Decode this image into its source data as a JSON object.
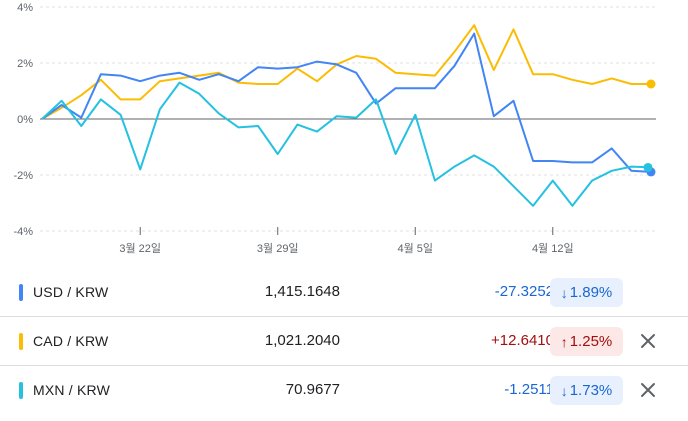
{
  "chart_data": {
    "type": "line",
    "ylim": [
      -4,
      4
    ],
    "ymin_tick": -4,
    "ymax_tick": 4,
    "y_ticks": [
      {
        "value": 4,
        "label": "4%"
      },
      {
        "value": 2,
        "label": "2%"
      },
      {
        "value": 0,
        "label": "0%"
      },
      {
        "value": -2,
        "label": "-2%"
      },
      {
        "value": -4,
        "label": "-4%"
      }
    ],
    "x_tick_labels": [
      {
        "index": 5,
        "label": "3월 22일"
      },
      {
        "index": 12,
        "label": "3월 29일"
      },
      {
        "index": 19,
        "label": "4월 5일"
      },
      {
        "index": 26,
        "label": "4월 12일"
      }
    ],
    "series": [
      {
        "name": "USD / KRW",
        "color": "#4285f4",
        "values": [
          0,
          0.5,
          0.05,
          1.6,
          1.55,
          1.35,
          1.55,
          1.65,
          1.4,
          1.6,
          1.35,
          1.85,
          1.8,
          1.85,
          2.05,
          1.95,
          1.65,
          0.55,
          1.1,
          1.1,
          1.1,
          1.9,
          3.05,
          0.1,
          0.65,
          -1.5,
          -1.5,
          -1.55,
          -1.55,
          -1.05,
          -1.85,
          -1.89
        ]
      },
      {
        "name": "CAD / KRW",
        "color": "#fbbc04",
        "values": [
          0,
          0.4,
          0.85,
          1.4,
          0.7,
          0.7,
          1.35,
          1.45,
          1.55,
          1.65,
          1.3,
          1.25,
          1.25,
          1.8,
          1.35,
          1.95,
          2.25,
          2.15,
          1.65,
          1.6,
          1.55,
          2.4,
          3.35,
          1.75,
          3.2,
          1.6,
          1.6,
          1.4,
          1.25,
          1.45,
          1.25,
          1.25
        ]
      },
      {
        "name": "MXN / KRW",
        "color": "#24c1e0",
        "values": [
          0,
          0.65,
          -0.25,
          0.7,
          0.15,
          -1.8,
          0.35,
          1.3,
          0.9,
          0.2,
          -0.3,
          -0.25,
          -1.25,
          -0.2,
          -0.45,
          0.1,
          0.05,
          0.7,
          -1.25,
          0.15,
          -2.2,
          -1.7,
          -1.3,
          -1.7,
          -2.4,
          -3.1,
          -2.2,
          -3.1,
          -2.2,
          -1.85,
          -1.7,
          -1.73
        ]
      }
    ]
  },
  "rows": [
    {
      "pair": "USD / KRW",
      "color": "#4285f4",
      "price": "1,415.1648",
      "change": "-27.3252",
      "percent": "1.89%",
      "arrow": "↓",
      "direction": "down",
      "has_close": false
    },
    {
      "pair": "CAD / KRW",
      "color": "#fbbc04",
      "price": "1,021.2040",
      "change": "+12.6410",
      "percent": "1.25%",
      "arrow": "↑",
      "direction": "up",
      "has_close": true
    },
    {
      "pair": "MXN / KRW",
      "color": "#24c1e0",
      "price": "70.9677",
      "change": "-1.2511",
      "percent": "1.73%",
      "arrow": "↓",
      "direction": "down",
      "has_close": true
    }
  ],
  "close_icon": "close-icon"
}
